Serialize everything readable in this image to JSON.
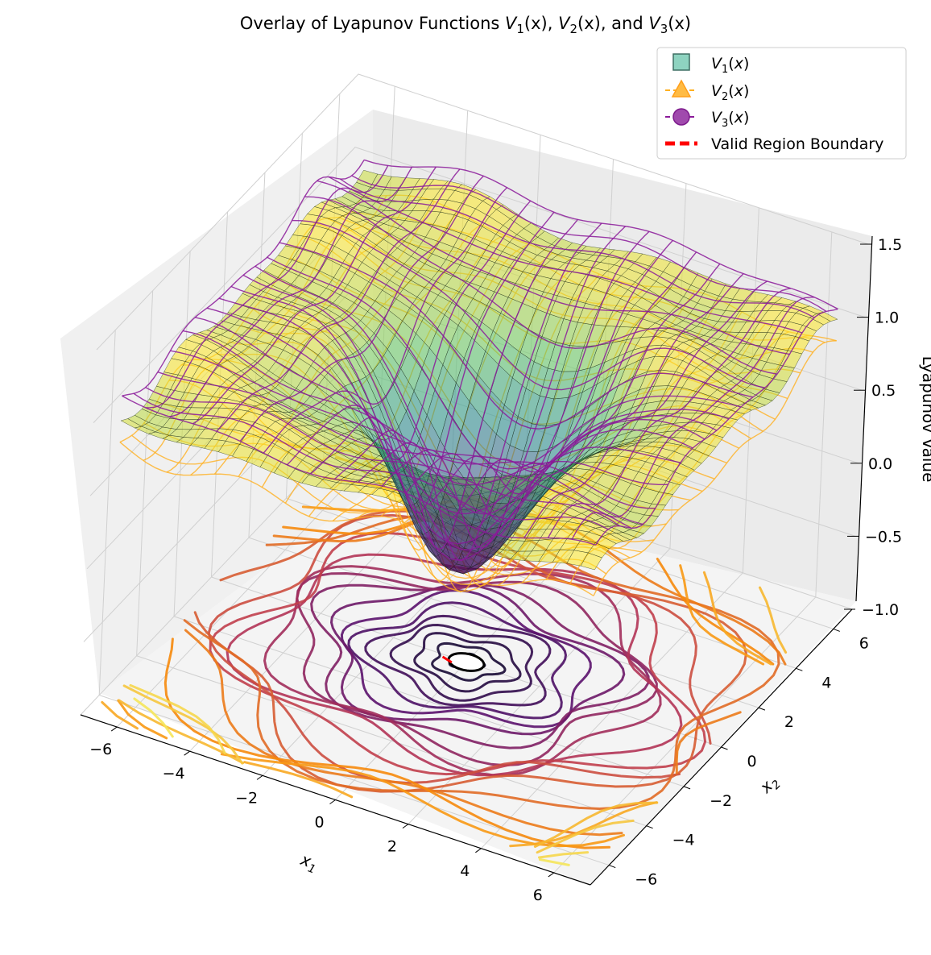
{
  "chart_data": {
    "type": "surface3d",
    "title": "Overlay of Lyapunov Functions V1(x), V2(x), and V3(x)",
    "title_parts": [
      "Overlay of Lyapunov Functions ",
      "V",
      "1",
      "(x), ",
      "V",
      "2",
      "(x), and ",
      "V",
      "3",
      "(x)"
    ],
    "xlabel": "x1",
    "ylabel": "x2",
    "zlabel": "Lyapunov Value",
    "xlim": [
      -7,
      7
    ],
    "ylim": [
      -7,
      7
    ],
    "zlim": [
      -1.0,
      1.5
    ],
    "x_ticks": [
      "−6",
      "−4",
      "−2",
      "0",
      "2",
      "4",
      "6"
    ],
    "y_ticks": [
      "−6",
      "−4",
      "−2",
      "0",
      "2",
      "4",
      "6"
    ],
    "z_ticks": [
      "−1.0",
      "−0.5",
      "0.0",
      "0.5",
      "1.0",
      "1.5"
    ],
    "legend": [
      {
        "label": "V1(x)",
        "base": "V",
        "sub": "1",
        "marker": "square",
        "color": "#7fd0b8"
      },
      {
        "label": "V2(x)",
        "base": "V",
        "sub": "2",
        "marker": "triangle",
        "color": "#ffb020"
      },
      {
        "label": "V3(x)",
        "base": "V",
        "sub": "3",
        "marker": "circle",
        "color": "#8b1a9a"
      },
      {
        "label": "Valid Region Boundary",
        "marker": "line",
        "color": "#ff0000"
      }
    ],
    "series": [
      {
        "name": "V1(x)",
        "kind": "surface",
        "colormap": "viridis",
        "min_at": [
          0,
          0
        ],
        "min_value": -0.3,
        "max_value": 1.0
      },
      {
        "name": "V2(x)",
        "kind": "wireframe",
        "color": "#ffb020",
        "offset": -0.15
      },
      {
        "name": "V3(x)",
        "kind": "wireframe",
        "color": "#8b1a9a",
        "offset": 0.15
      },
      {
        "name": "Valid Region Boundary",
        "kind": "contour",
        "color": "#ff0000",
        "level": 0
      }
    ],
    "floor_contours": {
      "z": -1.0,
      "colormap": "inferno",
      "levels": 24
    },
    "colors": {
      "pane": "#f2f2f2",
      "grid": "#d0d0d0"
    }
  }
}
